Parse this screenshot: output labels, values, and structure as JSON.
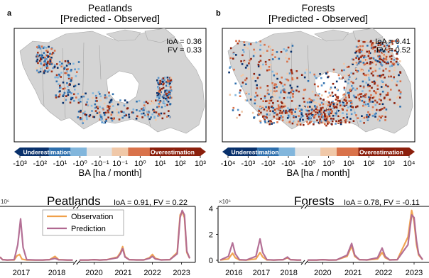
{
  "maps": [
    {
      "panel_letter": "a",
      "title": "Peatlands",
      "subtitle": "[Predicted - Observed]",
      "stats": [
        "IoA = 0.36",
        "FV = 0.33"
      ],
      "colorbar_low_label": "Underestimation",
      "colorbar_high_label": "Overestimation",
      "ticks": [
        "-10³",
        "-10²",
        "-10¹",
        "-10⁰",
        "-10⁻¹",
        "10⁻¹",
        "10⁰",
        "10¹",
        "10²",
        "10³"
      ],
      "unit_label": "BA [ha / month]"
    },
    {
      "panel_letter": "b",
      "title": "Forests",
      "subtitle": "[Predicted - Observed]",
      "stats": [
        "IoA = 0.41",
        "FV = 0.52"
      ],
      "colorbar_low_label": "Underestimation",
      "colorbar_high_label": "Overestimation",
      "ticks": [
        "-10⁴",
        "-10³",
        "-10²",
        "-10¹",
        "-10⁰",
        "10⁰",
        "10¹",
        "10²",
        "10³",
        "10⁴"
      ],
      "unit_label": "BA [ha / month]"
    }
  ],
  "colorbar_colors": [
    "#08306b",
    "#2e6fad",
    "#82b6dc",
    "#e4e4e4",
    "#f0c8a8",
    "#d9724a",
    "#8b1f0c"
  ],
  "series_colors": {
    "observation": "#f0a04a",
    "prediction": "#b06890"
  },
  "chart_data": [
    {
      "type": "line",
      "title": "Peatlands",
      "annotation": "IoA = 0.91, FV = 0.22",
      "axis_multiplier": "10⁶",
      "ylim": [
        0,
        4
      ],
      "x_ticks": [
        "2017",
        "2018",
        "2020",
        "2021",
        "2022",
        "2023"
      ],
      "legend": {
        "placement": "upper-left",
        "entries": [
          "Observation",
          "Prediction"
        ]
      },
      "series": [
        {
          "name": "Observation",
          "segments": [
            [
              [
                2016.9,
                0.25
              ],
              [
                2016.97,
                0.05
              ],
              [
                2017.1,
                0.02
              ],
              [
                2017.3,
                0.03
              ],
              [
                2017.38,
                0.35
              ],
              [
                2017.45,
                0.45
              ],
              [
                2017.52,
                0.08
              ],
              [
                2017.65,
                0.02
              ],
              [
                2017.9,
                0.02
              ],
              [
                2018.1,
                0.02
              ],
              [
                2018.3,
                0.05
              ],
              [
                2018.45,
                0.3
              ],
              [
                2018.55,
                0.05
              ],
              [
                2018.8,
                0.02
              ],
              [
                2018.95,
                0.02
              ]
            ],
            [
              [
                2020.0,
                0.02
              ],
              [
                2020.3,
                0.02
              ],
              [
                2020.5,
                0.05
              ],
              [
                2020.7,
                0.02
              ],
              [
                2020.95,
                0.05
              ],
              [
                2021.3,
                0.25
              ],
              [
                2021.4,
                0.6
              ],
              [
                2021.48,
                1.05
              ],
              [
                2021.56,
                0.3
              ],
              [
                2021.7,
                0.05
              ],
              [
                2021.95,
                0.03
              ],
              [
                2022.2,
                0.03
              ],
              [
                2022.4,
                0.2
              ],
              [
                2022.5,
                0.45
              ],
              [
                2022.6,
                0.15
              ],
              [
                2022.8,
                0.03
              ],
              [
                2023.1,
                0.05
              ],
              [
                2023.35,
                0.6
              ],
              [
                2023.45,
                3.5
              ],
              [
                2023.52,
                3.75
              ],
              [
                2023.6,
                3.3
              ],
              [
                2023.68,
                0.6
              ],
              [
                2023.78,
                0.15
              ]
            ]
          ]
        },
        {
          "name": "Prediction",
          "segments": [
            [
              [
                2016.9,
                0.25
              ],
              [
                2016.97,
                0.05
              ],
              [
                2017.1,
                0.02
              ],
              [
                2017.3,
                0.05
              ],
              [
                2017.4,
                1.2
              ],
              [
                2017.48,
                3.2
              ],
              [
                2017.55,
                1.0
              ],
              [
                2017.65,
                0.05
              ],
              [
                2017.9,
                0.02
              ],
              [
                2018.1,
                0.02
              ],
              [
                2018.3,
                0.05
              ],
              [
                2018.45,
                0.15
              ],
              [
                2018.55,
                0.04
              ],
              [
                2018.8,
                0.02
              ],
              [
                2018.95,
                0.02
              ]
            ],
            [
              [
                2020.0,
                0.02
              ],
              [
                2020.3,
                0.02
              ],
              [
                2020.5,
                0.05
              ],
              [
                2020.7,
                0.02
              ],
              [
                2020.95,
                0.05
              ],
              [
                2021.3,
                0.2
              ],
              [
                2021.4,
                0.5
              ],
              [
                2021.48,
                0.9
              ],
              [
                2021.56,
                0.25
              ],
              [
                2021.7,
                0.05
              ],
              [
                2021.95,
                0.03
              ],
              [
                2022.2,
                0.03
              ],
              [
                2022.4,
                0.15
              ],
              [
                2022.5,
                0.3
              ],
              [
                2022.6,
                0.1
              ],
              [
                2022.8,
                0.03
              ],
              [
                2023.1,
                0.05
              ],
              [
                2023.35,
                0.5
              ],
              [
                2023.45,
                3.3
              ],
              [
                2023.52,
                3.85
              ],
              [
                2023.6,
                3.5
              ],
              [
                2023.68,
                0.7
              ],
              [
                2023.78,
                0.15
              ]
            ]
          ]
        }
      ]
    },
    {
      "type": "line",
      "title": "Forests",
      "annotation": "IoA = 0.78, FV = -0.11",
      "axis_multiplier": "×10⁶",
      "ylim": [
        0,
        4
      ],
      "y_ticks": [
        "0",
        "2",
        "4"
      ],
      "x_ticks": [
        "2016",
        "2017",
        "2018",
        "2020",
        "2021",
        "2022",
        "2023"
      ],
      "series": [
        {
          "name": "Observation",
          "segments": [
            [
              [
                2016.0,
                0.02
              ],
              [
                2016.3,
                0.1
              ],
              [
                2016.45,
                0.55
              ],
              [
                2016.55,
                0.2
              ],
              [
                2016.7,
                0.03
              ],
              [
                2016.95,
                0.02
              ],
              [
                2017.3,
                0.1
              ],
              [
                2017.45,
                0.6
              ],
              [
                2017.55,
                0.25
              ],
              [
                2017.7,
                0.03
              ],
              [
                2017.95,
                0.02
              ],
              [
                2018.3,
                0.05
              ],
              [
                2018.45,
                0.2
              ],
              [
                2018.55,
                0.05
              ],
              [
                2018.8,
                0.02
              ],
              [
                2018.95,
                0.02
              ]
            ],
            [
              [
                2020.0,
                0.02
              ],
              [
                2020.3,
                0.02
              ],
              [
                2020.5,
                0.05
              ],
              [
                2020.7,
                0.02
              ],
              [
                2020.95,
                0.03
              ],
              [
                2021.3,
                0.3
              ],
              [
                2021.45,
                1.1
              ],
              [
                2021.55,
                0.3
              ],
              [
                2021.7,
                0.05
              ],
              [
                2021.95,
                0.03
              ],
              [
                2022.3,
                0.1
              ],
              [
                2022.45,
                0.6
              ],
              [
                2022.55,
                0.2
              ],
              [
                2022.7,
                0.03
              ],
              [
                2022.95,
                0.05
              ],
              [
                2023.3,
                1.8
              ],
              [
                2023.42,
                3.85
              ],
              [
                2023.5,
                3.0
              ],
              [
                2023.58,
                1.2
              ],
              [
                2023.65,
                0.4
              ],
              [
                2023.78,
                0.05
              ]
            ]
          ]
        },
        {
          "name": "Prediction",
          "segments": [
            [
              [
                2016.0,
                0.02
              ],
              [
                2016.3,
                0.3
              ],
              [
                2016.45,
                1.35
              ],
              [
                2016.55,
                0.5
              ],
              [
                2016.7,
                0.05
              ],
              [
                2016.95,
                0.02
              ],
              [
                2017.3,
                0.3
              ],
              [
                2017.45,
                1.65
              ],
              [
                2017.55,
                0.6
              ],
              [
                2017.7,
                0.05
              ],
              [
                2017.95,
                0.02
              ],
              [
                2018.3,
                0.05
              ],
              [
                2018.45,
                0.25
              ],
              [
                2018.55,
                0.05
              ],
              [
                2018.8,
                0.02
              ],
              [
                2018.95,
                0.02
              ]
            ],
            [
              [
                2020.0,
                0.02
              ],
              [
                2020.3,
                0.02
              ],
              [
                2020.5,
                0.05
              ],
              [
                2020.7,
                0.02
              ],
              [
                2020.95,
                0.03
              ],
              [
                2021.3,
                0.4
              ],
              [
                2021.45,
                1.3
              ],
              [
                2021.55,
                0.4
              ],
              [
                2021.7,
                0.05
              ],
              [
                2021.95,
                0.03
              ],
              [
                2022.3,
                0.2
              ],
              [
                2022.45,
                0.95
              ],
              [
                2022.55,
                0.3
              ],
              [
                2022.7,
                0.03
              ],
              [
                2022.95,
                0.05
              ],
              [
                2023.3,
                1.2
              ],
              [
                2023.42,
                3.5
              ],
              [
                2023.5,
                3.3
              ],
              [
                2023.58,
                1.5
              ],
              [
                2023.65,
                0.5
              ],
              [
                2023.78,
                0.05
              ]
            ]
          ]
        }
      ]
    }
  ]
}
